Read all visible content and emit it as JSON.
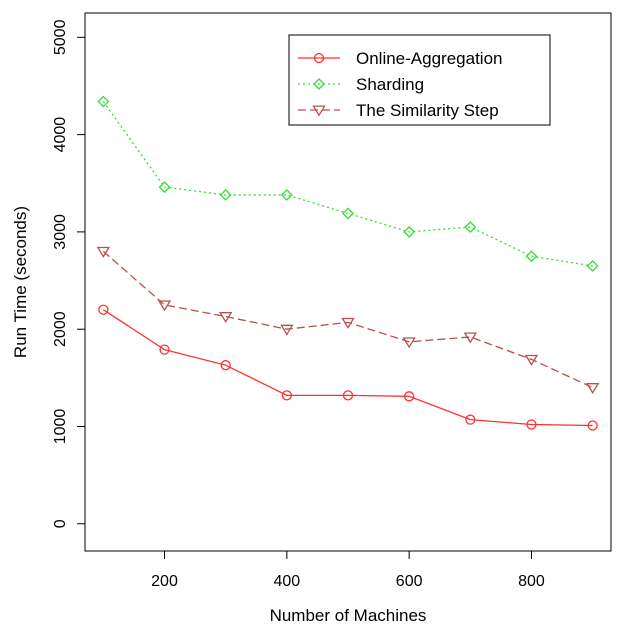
{
  "chart_data": {
    "type": "line",
    "title": "",
    "xlabel": "Number of Machines",
    "ylabel": "Run Time (seconds)",
    "xlim": [
      70,
      930
    ],
    "ylim": [
      -280,
      5250
    ],
    "x": [
      100,
      200,
      300,
      400,
      500,
      600,
      700,
      800,
      900
    ],
    "xticks": [
      200,
      400,
      600,
      800
    ],
    "yticks": [
      0,
      1000,
      2000,
      3000,
      4000,
      5000
    ],
    "grid": false,
    "legend_position": "top-right",
    "series": [
      {
        "name": "Online-Aggregation",
        "color": "#ff3030",
        "marker": "circle",
        "line": "solid",
        "values": [
          2200,
          1790,
          1630,
          1320,
          1320,
          1310,
          1070,
          1020,
          1010
        ]
      },
      {
        "name": "Sharding",
        "color": "#33dd33",
        "marker": "diamond",
        "line": "dotted",
        "values": [
          4340,
          3460,
          3380,
          3380,
          3190,
          3000,
          3050,
          2750,
          2650
        ]
      },
      {
        "name": "The Similarity Step",
        "color": "#b85050",
        "marker": "triangle-down",
        "line": "dashed",
        "values": [
          2800,
          2250,
          2130,
          2000,
          2070,
          1870,
          1920,
          1690,
          1400
        ]
      }
    ]
  }
}
